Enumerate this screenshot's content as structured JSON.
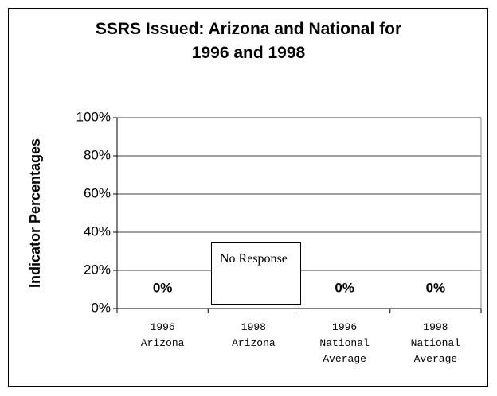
{
  "chart_data": {
    "type": "bar",
    "title": "SSRS Issued: Arizona and National for 1996 and 1998",
    "y_axis_label": "Indicator Percentages",
    "categories": [
      "1996 Arizona",
      "1998 Arizona",
      "1996 National Average",
      "1998 National Average"
    ],
    "values": [
      0,
      null,
      0,
      0
    ],
    "value_labels": [
      "0%",
      null,
      "0%",
      "0%"
    ],
    "annotation": "No Response",
    "color": "#000000",
    "ylim": [
      0,
      100
    ],
    "yticks": [
      {
        "value": 0,
        "label": "0%"
      },
      {
        "value": 20,
        "label": "20%"
      },
      {
        "value": 40,
        "label": "40%"
      },
      {
        "value": 60,
        "label": "60%"
      },
      {
        "value": 80,
        "label": "80%"
      },
      {
        "value": 100,
        "label": "100%"
      }
    ],
    "grid": true
  }
}
